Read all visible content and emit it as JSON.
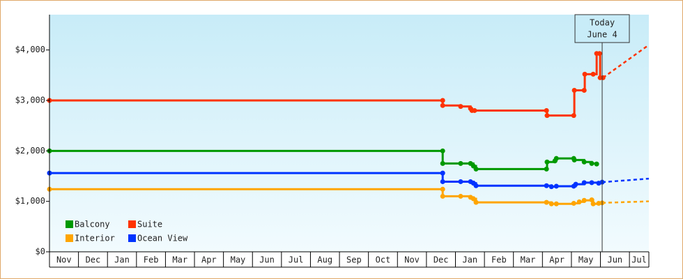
{
  "chart_data": {
    "type": "line",
    "categories": [
      "Nov",
      "Dec",
      "Jan",
      "Feb",
      "Mar",
      "Apr",
      "May",
      "Jun",
      "Jul",
      "Aug",
      "Sep",
      "Oct",
      "Nov",
      "Dec",
      "Jan",
      "Feb",
      "Mar",
      "Apr",
      "May",
      "Jun",
      "Jul"
    ],
    "xlim": [
      0,
      20.67
    ],
    "ylim": [
      0,
      4700
    ],
    "yticks": [
      {
        "value": 0,
        "label": "$0"
      },
      {
        "value": 1000,
        "label": "$1,000"
      },
      {
        "value": 2000,
        "label": "$2,000"
      },
      {
        "value": 3000,
        "label": "$3,000"
      },
      {
        "value": 4000,
        "label": "$4,000"
      }
    ],
    "series": [
      {
        "name": "Balcony",
        "color": "#009900",
        "x": [
          0,
          13.56,
          13.56,
          14.18,
          14.52,
          14.62,
          14.71,
          17.14,
          17.16,
          17.43,
          17.48,
          18.08,
          18.1,
          18.44,
          18.7,
          18.87
        ],
        "values": [
          2000,
          2000,
          1750,
          1750,
          1750,
          1700,
          1640,
          1640,
          1780,
          1800,
          1850,
          1850,
          1820,
          1780,
          1750,
          1740
        ]
      },
      {
        "name": "Suite",
        "color": "#ff3300",
        "x": [
          0,
          13.56,
          13.56,
          14.18,
          14.52,
          14.57,
          14.66,
          17.14,
          17.16,
          18.08,
          18.1,
          18.44,
          18.46,
          18.75,
          18.87,
          18.97,
          18.99,
          19.09
        ],
        "values": [
          3000,
          3000,
          2900,
          2880,
          2840,
          2800,
          2800,
          2800,
          2700,
          2700,
          3200,
          3200,
          3520,
          3520,
          3930,
          3930,
          3450,
          3450
        ],
        "projection": {
          "x": [
            19.09,
            20.67
          ],
          "values": [
            3450,
            4100
          ]
        }
      },
      {
        "name": "Interior",
        "color": "#ffa500",
        "x": [
          0,
          13.56,
          13.56,
          14.18,
          14.52,
          14.62,
          14.71,
          17.14,
          17.31,
          17.48,
          18.08,
          18.27,
          18.44,
          18.7,
          18.75,
          18.94,
          19.06
        ],
        "values": [
          1240,
          1240,
          1100,
          1100,
          1080,
          1050,
          980,
          980,
          950,
          950,
          960,
          990,
          1020,
          1030,
          950,
          960,
          970
        ],
        "projection": {
          "x": [
            19.06,
            20.67
          ],
          "values": [
            970,
            1000
          ]
        }
      },
      {
        "name": "Ocean View",
        "color": "#0033ff",
        "x": [
          0,
          13.56,
          13.56,
          14.18,
          14.52,
          14.62,
          14.71,
          17.14,
          17.31,
          17.48,
          18.08,
          18.15,
          18.44,
          18.7,
          18.94,
          19.06
        ],
        "values": [
          1560,
          1560,
          1390,
          1390,
          1390,
          1360,
          1310,
          1310,
          1290,
          1300,
          1300,
          1340,
          1370,
          1370,
          1360,
          1380
        ],
        "projection": {
          "x": [
            19.06,
            20.67
          ],
          "values": [
            1380,
            1450
          ]
        }
      }
    ],
    "today": {
      "x": 19.06,
      "label": [
        "Today",
        "June 4"
      ]
    }
  }
}
